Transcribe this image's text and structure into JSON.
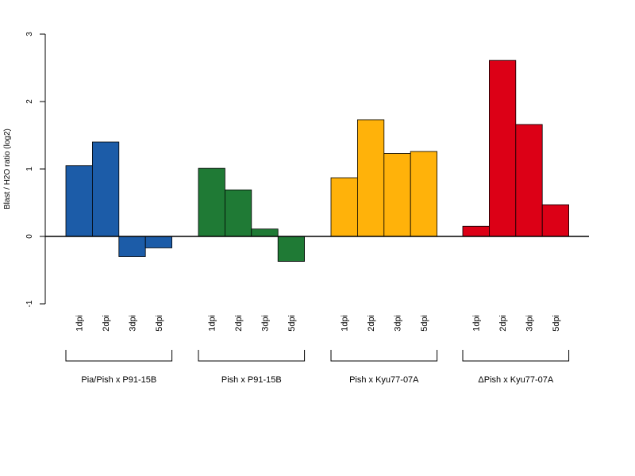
{
  "chart_data": {
    "type": "bar",
    "ylabel": "Blast / H2O ratio (log2)",
    "ylim": [
      -1,
      3
    ],
    "yticks": [
      "-1",
      "0",
      "1",
      "2",
      "3"
    ],
    "grid": false,
    "categories": [
      "1dpi",
      "2dpi",
      "3dpi",
      "5dpi"
    ],
    "groups": [
      {
        "name": "Pia/Pish x P91-15B",
        "color": "#1c5ca8",
        "values": [
          1.05,
          1.4,
          -0.3,
          -0.17
        ]
      },
      {
        "name": "Pish x P91-15B",
        "color": "#1f7a35",
        "values": [
          1.01,
          0.69,
          0.11,
          -0.37
        ]
      },
      {
        "name": "Pish x Kyu77-07A",
        "color": "#ffb20a",
        "values": [
          0.87,
          1.73,
          1.23,
          1.26
        ]
      },
      {
        "name": "ΔPish x Kyu77-07A",
        "color": "#dc0016",
        "values": [
          0.15,
          2.61,
          1.66,
          0.47
        ]
      }
    ]
  }
}
